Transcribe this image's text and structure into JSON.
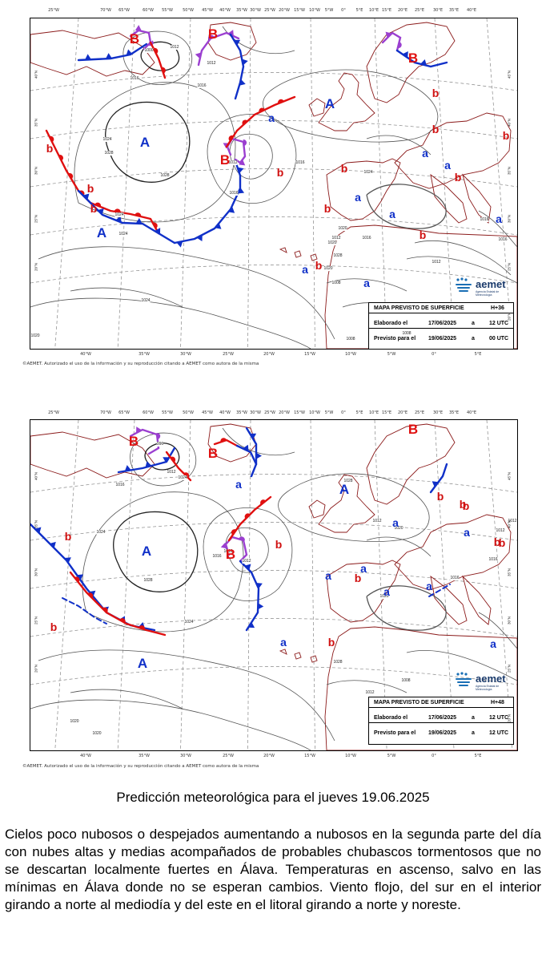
{
  "maps": [
    {
      "credit": "©AEMET. Autorizado el uso de la información y su reproducción citando a AEMET como autora de la misma",
      "info": {
        "title": "MAPA PREVISTO DE SUPERFICIE",
        "step": "H+36",
        "elaborated_label": "Elaborado el",
        "elaborated_date": "17/06/2025",
        "elaborated_sep": "a",
        "elaborated_time": "12 UTC",
        "valid_label": "Previsto para el",
        "valid_date": "19/06/2025",
        "valid_sep": "a",
        "valid_time": "00 UTC"
      },
      "logo": {
        "name": "aemet",
        "subtitle": "Agencia Estatal de Meteorología"
      },
      "lon_top": [
        "25°W",
        "70°W",
        "65°W",
        "60°W",
        "55°W",
        "50°W",
        "45°W",
        "40°W",
        "35°W",
        "30°W",
        "25°W",
        "20°W",
        "15°W",
        "10°W",
        "5°W",
        "0°",
        "5°E",
        "10°E",
        "15°E",
        "20°E",
        "25°E",
        "30°E",
        "35°E",
        "40°E"
      ],
      "lon_bottom": [
        "40°W",
        "35°W",
        "30°W",
        "25°W",
        "20°W",
        "15°W",
        "10°W",
        "5°W",
        "0°",
        "5°E",
        "10°E"
      ],
      "lat_right": [
        "45°N",
        "40°N",
        "35°N",
        "30°N",
        "25°N",
        "20°N"
      ],
      "lat_left": [
        "40°N",
        "35°N",
        "30°N",
        "25°N",
        "20°N"
      ],
      "centers": [
        {
          "t": "B"
        },
        {
          "t": "B"
        },
        {
          "t": "B"
        },
        {
          "t": "B"
        },
        {
          "t": "A"
        },
        {
          "t": "A"
        },
        {
          "t": "A"
        },
        {
          "t": "b"
        },
        {
          "t": "b"
        },
        {
          "t": "b"
        },
        {
          "t": "b"
        },
        {
          "t": "b"
        },
        {
          "t": "b"
        },
        {
          "t": "b"
        },
        {
          "t": "b"
        },
        {
          "t": "b"
        },
        {
          "t": "b"
        },
        {
          "t": "b"
        },
        {
          "t": "b"
        },
        {
          "t": "a"
        },
        {
          "t": "a"
        },
        {
          "t": "a"
        },
        {
          "t": "a"
        },
        {
          "t": "a"
        },
        {
          "t": "a"
        },
        {
          "t": "a"
        },
        {
          "t": "a"
        }
      ],
      "isobar_labels": [
        "1012",
        "1000",
        "1016",
        "1012",
        "1016",
        "1024",
        "1028",
        "1028",
        "1024",
        "1012",
        "1016",
        "1024",
        "1016",
        "1020",
        "1028",
        "1020",
        "1016",
        "1020",
        "1016",
        "1016",
        "1012",
        "1024",
        "1024",
        "1020",
        "1008",
        "1012",
        "1008",
        "1008"
      ]
    },
    {
      "credit": "©AEMET. Autorizado el uso de la información y su reproducción citando a AEMET como autora de la misma",
      "info": {
        "title": "MAPA PREVISTO DE SUPERFICIE",
        "step": "H+48",
        "elaborated_label": "Elaborado el",
        "elaborated_date": "17/06/2025",
        "elaborated_sep": "a",
        "elaborated_time": "12 UTC",
        "valid_label": "Previsto para el",
        "valid_date": "19/06/2025",
        "valid_sep": "a",
        "valid_time": "12 UTC"
      },
      "logo": {
        "name": "aemet",
        "subtitle": "Agencia Estatal de Meteorología"
      },
      "lon_top": [
        "25°W",
        "70°W",
        "65°W",
        "60°W",
        "55°W",
        "50°W",
        "45°W",
        "40°W",
        "35°W",
        "30°W",
        "25°W",
        "20°W",
        "15°W",
        "10°W",
        "5°W",
        "0°",
        "5°E",
        "10°E",
        "15°E",
        "20°E",
        "25°E",
        "30°E",
        "35°E",
        "40°E"
      ],
      "lon_bottom": [
        "40°W",
        "35°W",
        "30°W",
        "25°W",
        "20°W",
        "15°W",
        "10°W",
        "5°W",
        "0°",
        "5°E",
        "10°E"
      ],
      "lat_right": [
        "45°N",
        "40°N",
        "35°N",
        "30°N",
        "25°N",
        "20°N"
      ],
      "lat_left": [
        "40°N",
        "35°N",
        "30°N",
        "25°N",
        "20°N"
      ],
      "centers": [
        {
          "t": "B"
        },
        {
          "t": "B"
        },
        {
          "t": "B"
        },
        {
          "t": "B"
        },
        {
          "t": "A"
        },
        {
          "t": "A"
        },
        {
          "t": "A"
        },
        {
          "t": "b"
        },
        {
          "t": "b"
        },
        {
          "t": "b"
        },
        {
          "t": "b"
        },
        {
          "t": "b"
        },
        {
          "t": "b"
        },
        {
          "t": "b"
        },
        {
          "t": "b"
        },
        {
          "t": "b"
        },
        {
          "t": "b"
        },
        {
          "t": "a"
        },
        {
          "t": "a"
        },
        {
          "t": "a"
        },
        {
          "t": "a"
        },
        {
          "t": "a"
        },
        {
          "t": "a"
        },
        {
          "t": "a"
        },
        {
          "t": "a"
        },
        {
          "t": "a"
        }
      ],
      "isobar_labels": [
        "996",
        "1012",
        "1016",
        "1024",
        "1028",
        "1016",
        "1028",
        "1012",
        "1016",
        "1012",
        "1020",
        "1020",
        "1024",
        "1028",
        "1012",
        "1008",
        "1020",
        "1020",
        "1012",
        "1012",
        "1016",
        "1016",
        "1024"
      ]
    }
  ],
  "forecast": {
    "title": "Predicción meteorológica para el jueves 19.06.2025",
    "body": "Cielos poco nubosos o despejados aumentando a nubosos en la segunda parte del día con nubes altas y medias acompañados de probables chubascos tormentosos que no se descartan localmente fuertes en Álava. Temperaturas en ascenso, salvo en las mínimas en Álava donde no se esperan cambios. Viento flojo, del sur en el interior girando a norte al mediodía y del este en el litoral girando a norte y noreste."
  },
  "colors": {
    "cold_front": "#1030c8",
    "warm_front": "#e01010",
    "occluded_front": "#9b3fd0",
    "coast": "#8b1a1a",
    "isobar": "#555555",
    "grid": "#888888"
  }
}
